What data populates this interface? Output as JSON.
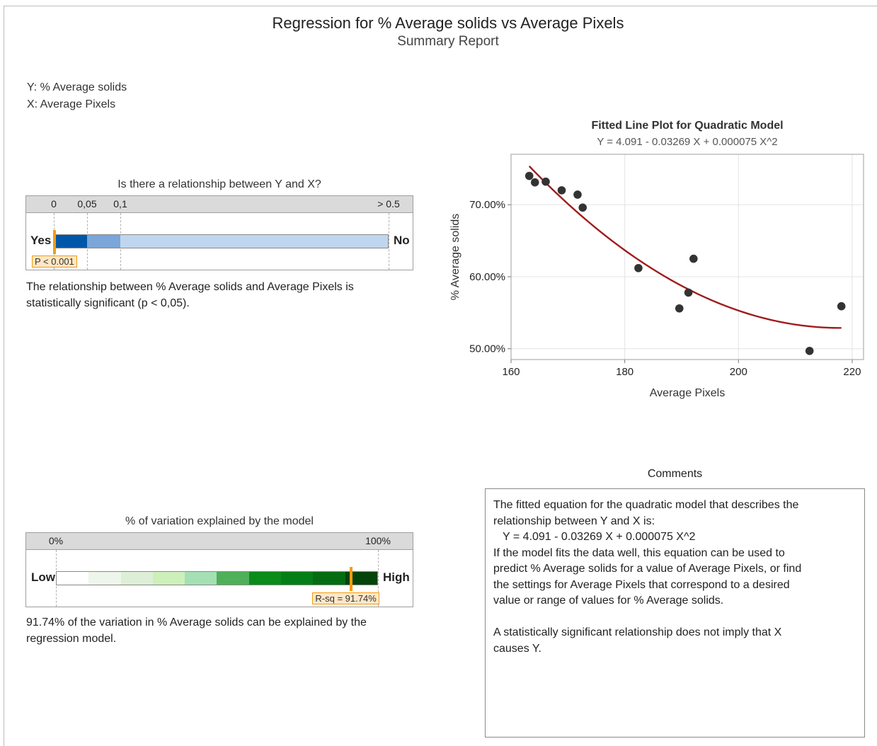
{
  "report": {
    "title": "Regression for % Average solids vs Average Pixels",
    "subtitle": "Summary Report",
    "y_var": "Y: % Average solids",
    "x_var": "X: Average Pixels"
  },
  "relationship": {
    "title": "Is there a relationship between Y and X?",
    "ticks": [
      "0",
      "0,05",
      "0,1",
      "> 0.5"
    ],
    "yes_label": "Yes",
    "no_label": "No",
    "p_label": "P < 0.001",
    "p_value": 0.001,
    "colors": {
      "dark": "#0057a8",
      "mid": "#7aa6da",
      "light": "#c0d6ee"
    },
    "description": "The relationship between % Average solids and Average Pixels is statistically significant (p < 0,05)."
  },
  "variation": {
    "title": "% of variation explained by the model",
    "ticks": [
      "0%",
      "100%"
    ],
    "low_label": "Low",
    "high_label": "High",
    "rsq_label": "R-sq = 91.74%",
    "rsq_value": 91.74,
    "colors": [
      "#ffffff",
      "#eef6ec",
      "#ddefd7",
      "#cdf0bb",
      "#a4e0b4",
      "#4eb058",
      "#0a8b1a",
      "#047f17",
      "#046d12",
      "#03440b"
    ],
    "description": "91.74% of the variation in % Average solids can be explained by the regression model."
  },
  "chart_data": {
    "type": "scatter",
    "title": "Fitted Line Plot for Quadratic Model",
    "subtitle": "Y = 4.091 - 0.03269 X + 0.000075 X^2",
    "xlabel": "Average Pixels",
    "ylabel": "% Average solids",
    "xlim": [
      160,
      222
    ],
    "ylim": [
      48.5,
      77
    ],
    "x_ticks": [
      160,
      180,
      200,
      220
    ],
    "y_ticks": [
      50,
      60,
      70
    ],
    "y_tick_labels": [
      "50.00%",
      "60.00%",
      "70.00%"
    ],
    "grid": true,
    "points": [
      {
        "x": 163.2,
        "y": 74.0
      },
      {
        "x": 164.2,
        "y": 73.1
      },
      {
        "x": 166.1,
        "y": 73.2
      },
      {
        "x": 168.9,
        "y": 72.0
      },
      {
        "x": 171.7,
        "y": 71.4
      },
      {
        "x": 172.6,
        "y": 69.6
      },
      {
        "x": 182.4,
        "y": 61.2
      },
      {
        "x": 189.6,
        "y": 55.6
      },
      {
        "x": 191.2,
        "y": 57.8
      },
      {
        "x": 192.1,
        "y": 62.5
      },
      {
        "x": 212.5,
        "y": 49.7
      },
      {
        "x": 218.1,
        "y": 55.9
      }
    ],
    "fit": {
      "model": "quadratic",
      "b0": 409.1,
      "b1": -3.269,
      "b2": 0.0075,
      "x_from": 163.2,
      "x_to": 218.1
    },
    "colors": {
      "points": "#333333",
      "fit": "#a01c1c",
      "grid": "#e3e3e3"
    }
  },
  "comments": {
    "title": "Comments",
    "lines": [
      "The fitted equation for the quadratic model that describes the",
      "relationship between Y and X is:",
      "   Y = 4.091 - 0.03269 X + 0.000075 X^2",
      "If the model fits the data well, this equation can be used to",
      "predict % Average solids for a value of Average Pixels, or find",
      "the settings for Average Pixels that correspond to a desired",
      "value or range of values for % Average solids.",
      "",
      "A statistically significant relationship does not imply that X",
      "causes Y."
    ]
  }
}
